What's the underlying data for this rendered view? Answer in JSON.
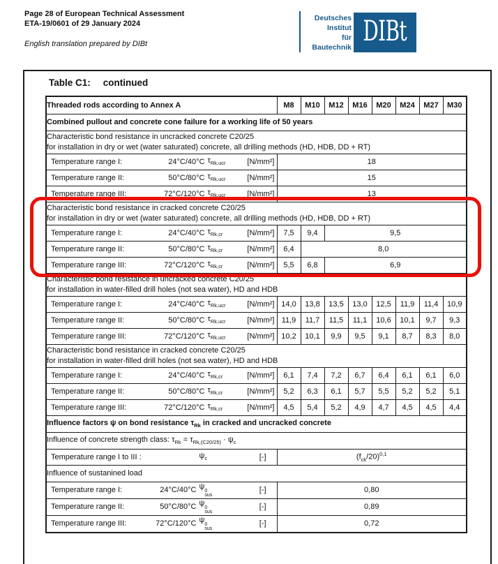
{
  "page": {
    "header_line1": "Page 28 of European Technical Assessment",
    "header_line2": "ETA-19/0601 of 29 January 2024",
    "note": "English translation prepared by DIBt"
  },
  "logo": {
    "institute": [
      "Deutsches",
      "Institut",
      "für",
      "Bautechnik"
    ],
    "logotype": "DIBt",
    "color": "#175a8c"
  },
  "table_title": {
    "main": "Table C1:",
    "suffix": "continued"
  },
  "table": {
    "rods_label": "Threaded rods according to Annex A",
    "sizes": [
      "M8",
      "M10",
      "M12",
      "M16",
      "M20",
      "M24",
      "M27",
      "M30"
    ],
    "working_life": "Combined pullout and concrete cone failure for a working life of 50 years",
    "unit_nmm2": "[N/mm²]",
    "unit_dim": "[-]",
    "sections": [
      {
        "line1": "Characteristic bond resistance in uncracked concrete C20/25",
        "line2": "for installation in dry or wet (water saturated) concrete, all drilling methods (HD, HDB, DD + RT)",
        "sym": {
          "base": "τ",
          "sub": "Rk,ucr"
        },
        "rows": [
          {
            "label": "Temperature range I:",
            "temp": "24°C/40°C",
            "cells": [
              {
                "v": "18",
                "span": 8
              }
            ]
          },
          {
            "label": "Temperature range II:",
            "temp": "50°C/80°C",
            "cells": [
              {
                "v": "15",
                "span": 8
              }
            ]
          },
          {
            "label": "Temperature range III:",
            "temp": "72°C/120°C",
            "cells": [
              {
                "v": "13",
                "span": 8
              }
            ]
          }
        ]
      },
      {
        "line1": "Characteristic bond resistance in cracked concrete C20/25",
        "line2": "for installation in dry or wet (water saturated) concrete, all drilling methods (HD, HDB, DD + RT)",
        "sym": {
          "base": "τ",
          "sub": "Rk,cr"
        },
        "rows": [
          {
            "label": "Temperature range I:",
            "temp": "24°C/40°C",
            "cells": [
              {
                "v": "7,5",
                "span": 1
              },
              {
                "v": "9,4",
                "span": 1
              },
              {
                "v": "9,5",
                "span": 6
              }
            ]
          },
          {
            "label": "Temperature range II:",
            "temp": "50°C/80°C",
            "cells": [
              {
                "v": "6,4",
                "span": 1
              },
              {
                "v": "8,0",
                "span": 7
              }
            ]
          },
          {
            "label": "Temperature range III:",
            "temp": "72°C/120°C",
            "cells": [
              {
                "v": "5,5",
                "span": 1
              },
              {
                "v": "6,8",
                "span": 1
              },
              {
                "v": "6,9",
                "span": 6
              }
            ]
          }
        ]
      },
      {
        "line1": "Characteristic bond resistance in uncracked concrete C20/25",
        "line2": "for installation in water-filled drill holes (not sea water), HD and HDB",
        "sym": {
          "base": "τ",
          "sub": "Rk,ucr"
        },
        "rows": [
          {
            "label": "Temperature range I:",
            "temp": "24°C/40°C",
            "cells": [
              {
                "v": "14,0"
              },
              {
                "v": "13,8"
              },
              {
                "v": "13,5"
              },
              {
                "v": "13,0"
              },
              {
                "v": "12,5"
              },
              {
                "v": "11,9"
              },
              {
                "v": "11,4"
              },
              {
                "v": "10,9"
              }
            ]
          },
          {
            "label": "Temperature range II:",
            "temp": "50°C/80°C",
            "cells": [
              {
                "v": "11,9"
              },
              {
                "v": "11,7"
              },
              {
                "v": "11,5"
              },
              {
                "v": "11,1"
              },
              {
                "v": "10,6"
              },
              {
                "v": "10,1"
              },
              {
                "v": "9,7"
              },
              {
                "v": "9,3"
              }
            ]
          },
          {
            "label": "Temperature range III:",
            "temp": "72°C/120°C",
            "cells": [
              {
                "v": "10,2"
              },
              {
                "v": "10,1"
              },
              {
                "v": "9,9"
              },
              {
                "v": "9,5"
              },
              {
                "v": "9,1"
              },
              {
                "v": "8,7"
              },
              {
                "v": "8,3"
              },
              {
                "v": "8,0"
              }
            ]
          }
        ]
      },
      {
        "line1": "Characteristic bond resistance in cracked concrete C20/25",
        "line2": "for installation in water-filled drill holes (not sea water), HD and HDB",
        "sym": {
          "base": "τ",
          "sub": "Rk,cr"
        },
        "rows": [
          {
            "label": "Temperature range I:",
            "temp": "24°C/40°C",
            "cells": [
              {
                "v": "6,1"
              },
              {
                "v": "7,4"
              },
              {
                "v": "7,2"
              },
              {
                "v": "6,7"
              },
              {
                "v": "6,4"
              },
              {
                "v": "6,1"
              },
              {
                "v": "6,1"
              },
              {
                "v": "6,0"
              }
            ]
          },
          {
            "label": "Temperature range II:",
            "temp": "50°C/80°C",
            "cells": [
              {
                "v": "5,2"
              },
              {
                "v": "6,3"
              },
              {
                "v": "6,1"
              },
              {
                "v": "5,7"
              },
              {
                "v": "5,5"
              },
              {
                "v": "5,2"
              },
              {
                "v": "5,2"
              },
              {
                "v": "5,1"
              }
            ]
          },
          {
            "label": "Temperature range III:",
            "temp": "72°C/120°C",
            "cells": [
              {
                "v": "4,5"
              },
              {
                "v": "5,4"
              },
              {
                "v": "5,2"
              },
              {
                "v": "4,9"
              },
              {
                "v": "4,7"
              },
              {
                "v": "4,5"
              },
              {
                "v": "4,5"
              },
              {
                "v": "4,4"
              }
            ]
          }
        ]
      }
    ],
    "influence": {
      "header": {
        "p1": "Influence factors ",
        "psi": "ψ",
        "p2": " on bond resistance ",
        "tau": "τ",
        "tausub": "Rk",
        "p3": " in cracked and uncracked concrete"
      },
      "strength_title": {
        "p1": "Influence of concrete strength class: ",
        "t1": "τ",
        "t1sub": "Rk",
        "eq": " = ",
        "t2": "τ",
        "t2sub": "Rk,(C20/25)",
        "dot": " · ",
        "psi": "ψ",
        "psisub": "c"
      },
      "strength_row": {
        "label": "Temperature range I to III :",
        "sym": {
          "base": "ψ",
          "sub": "c"
        },
        "value": {
          "p1": "(f",
          "sub": "ck",
          "p2": "/20)",
          "sup": "0,1"
        }
      },
      "sustained_title": "Influence of sustanined load",
      "sus_sym": {
        "base": "ψ",
        "sup": "0",
        "sub": "sus"
      },
      "sustained_rows": [
        {
          "label": "Temperature range I:",
          "temp": "24°C/40°C",
          "value": "0,80"
        },
        {
          "label": "Temperature range II:",
          "temp": "50°C/80°C",
          "value": "0,89"
        },
        {
          "label": "Temperature range III:",
          "temp": "72°C/120°C",
          "value": "0,72"
        }
      ]
    }
  },
  "annotation": {
    "color": "#e8120b"
  }
}
